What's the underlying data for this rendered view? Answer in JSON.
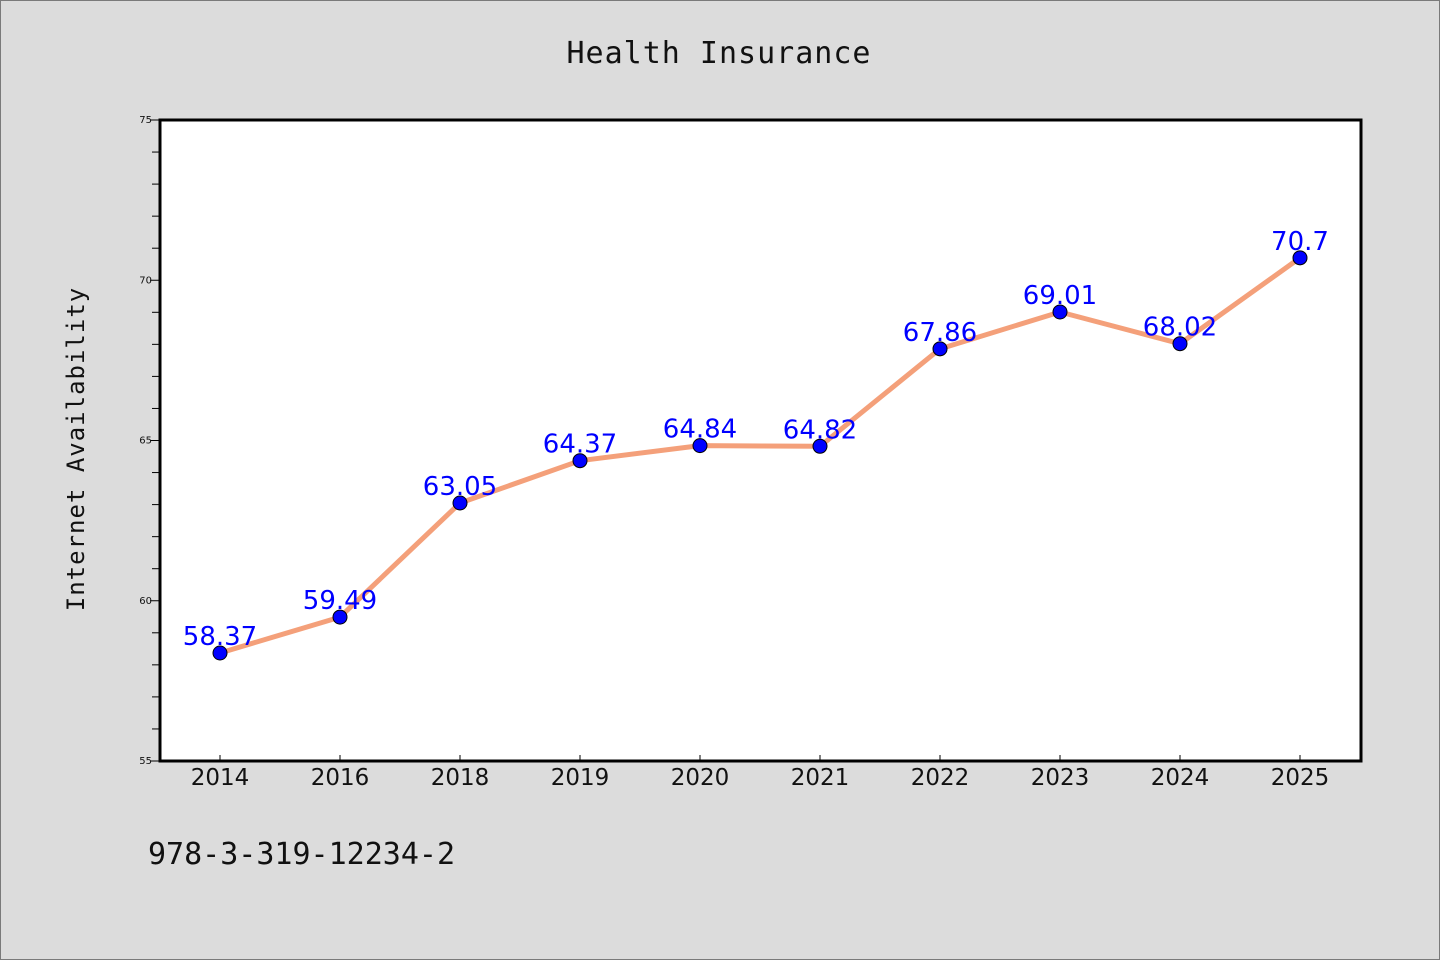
{
  "chart_data": {
    "type": "line",
    "title": "Health Insurance",
    "xlabel": "",
    "ylabel": "Internet Availability",
    "categories": [
      "2014",
      "2016",
      "2018",
      "2019",
      "2020",
      "2021",
      "2022",
      "2023",
      "2024",
      "2025"
    ],
    "series": [
      {
        "values": [
          58.37,
          59.49,
          63.05,
          64.37,
          64.84,
          64.82,
          67.86,
          69.01,
          68.02,
          70.7
        ],
        "labels": [
          "58.37",
          "59.49",
          "63.05",
          "64.37",
          "64.84",
          "64.82",
          "67.86",
          "69.01",
          "68.02",
          "70.7"
        ]
      }
    ],
    "ylim": [
      55,
      75
    ],
    "yticks": [
      "55",
      "60",
      "65",
      "70",
      "75"
    ],
    "grid": false,
    "line_color": "#f4a07a",
    "marker_color": "#0000ff",
    "label_color": "#0000ff"
  },
  "footer_text": "978-3-319-12234-2"
}
